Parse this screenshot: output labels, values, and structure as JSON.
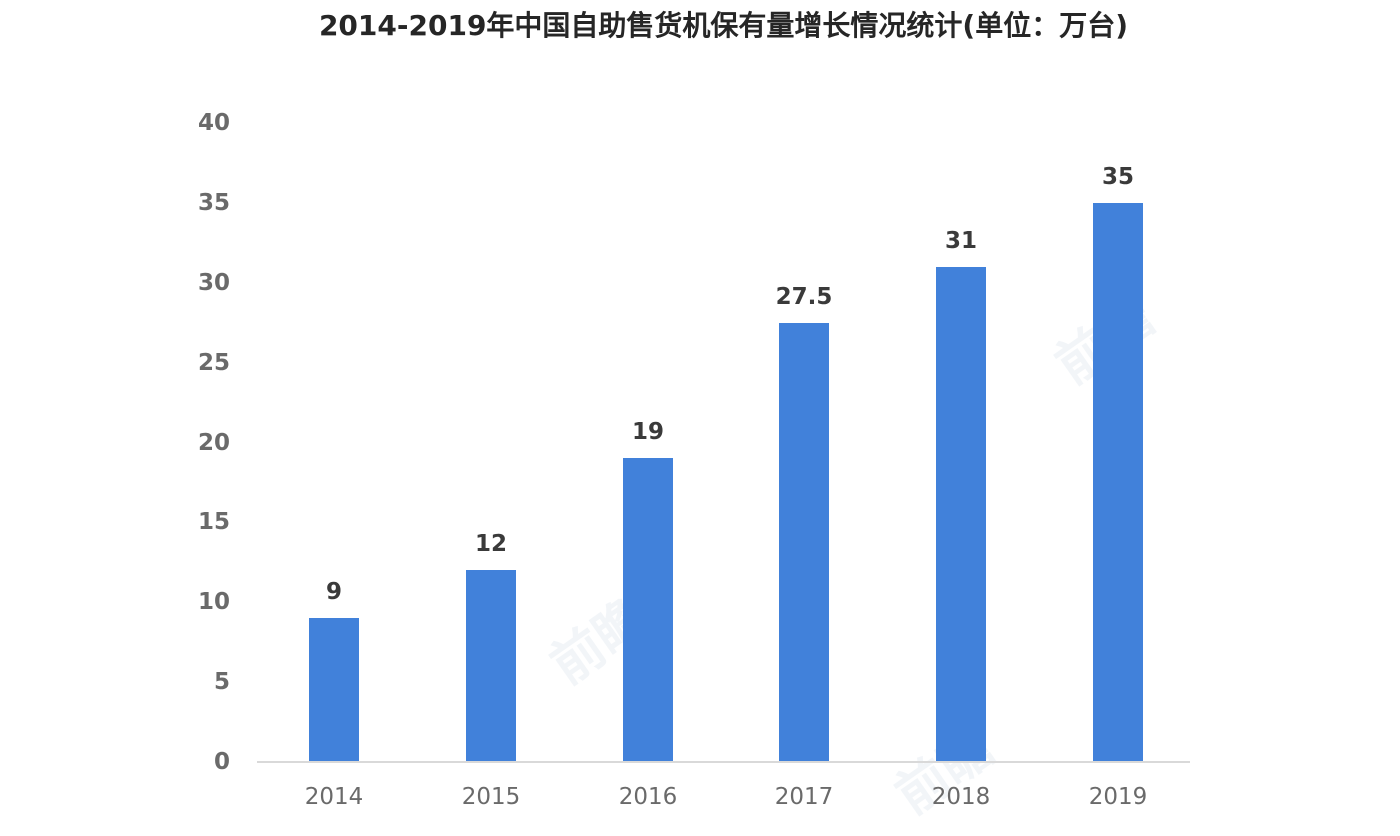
{
  "chart_data": {
    "type": "bar",
    "title": "2014-2019年中国自助售货机保有量增长情况统计(单位：万台)",
    "categories": [
      "2014",
      "2015",
      "2016",
      "2017",
      "2018",
      "2019"
    ],
    "values": [
      9,
      12,
      19,
      27.5,
      31,
      35
    ],
    "value_labels": [
      "9",
      "12",
      "19",
      "27.5",
      "31",
      "35"
    ],
    "yticks": [
      0,
      5,
      10,
      15,
      20,
      25,
      30,
      35,
      40
    ],
    "ylim": [
      0,
      40
    ],
    "xlabel": "",
    "ylabel": "",
    "grid": false,
    "legend_position": "none",
    "bar_color": "#4181da",
    "axis_line_color": "#d9d9d9",
    "tick_label_color": "#6a6a6a",
    "value_label_color": "#3a3a3a",
    "title_color": "#262626",
    "background_color": "#ffffff"
  },
  "watermark": {
    "text": "前瞻"
  }
}
